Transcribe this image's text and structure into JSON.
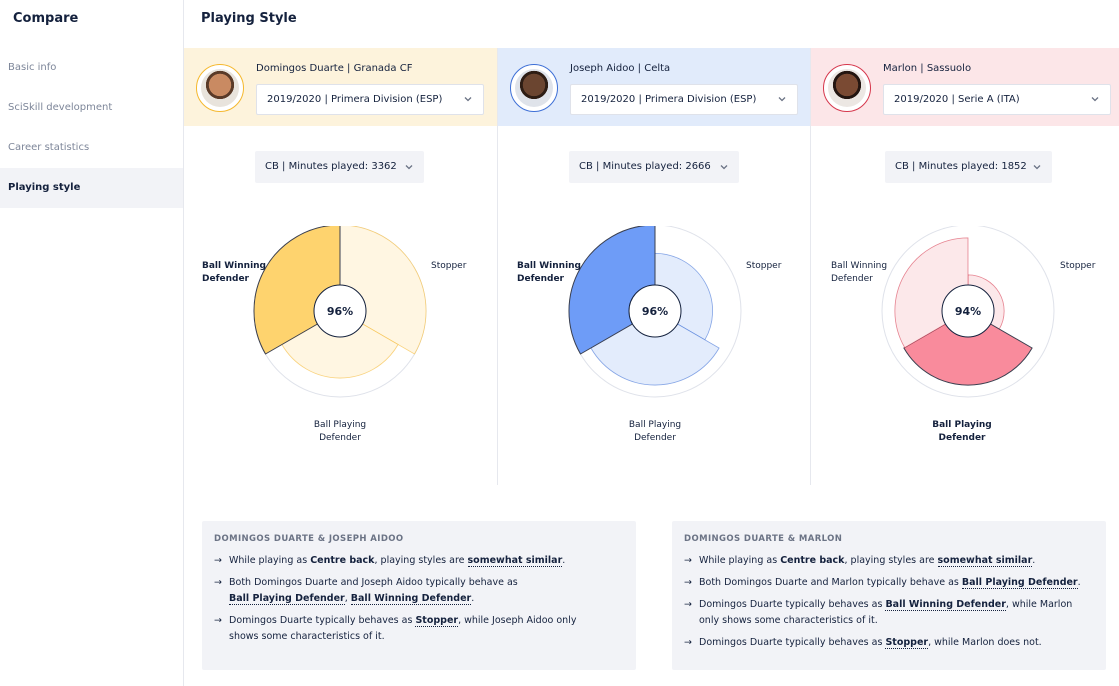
{
  "sidebar": {
    "title": "Compare",
    "items": [
      {
        "label": "Basic info"
      },
      {
        "label": "SciSkill development"
      },
      {
        "label": "Career statistics"
      },
      {
        "label": "Playing style"
      }
    ]
  },
  "main": {
    "title": "Playing Style"
  },
  "players": [
    {
      "name": "Domingos Duarte | Granada CF",
      "season": "2019/2020 | Primera Division (ESP)",
      "position": "CB | Minutes played: 3362",
      "score": "96%",
      "labels": {
        "left": "Ball Winning\nDefender",
        "right": "Stopper",
        "bottom": "Ball Playing\nDefender"
      },
      "colors": {
        "accent": "#f5b82e",
        "header_bg": "#fdf3dc",
        "strong": "#fed36e",
        "light": "#fff6e2"
      },
      "levels": {
        "ball_winning": 1.0,
        "stopper": 1.0,
        "ball_playing": 0.78
      }
    },
    {
      "name": "Joseph Aidoo | Celta",
      "season": "2019/2020 | Primera Division (ESP)",
      "position": "CB | Minutes played: 2666",
      "score": "96%",
      "labels": {
        "left": "Ball Winning\nDefender",
        "right": "Stopper",
        "bottom": "Ball Playing\nDefender"
      },
      "colors": {
        "accent": "#3d6fd6",
        "header_bg": "#e1ebfb",
        "strong": "#6e9cf7",
        "light": "#e3ecfc"
      },
      "levels": {
        "ball_winning": 1.0,
        "stopper": 0.67,
        "ball_playing": 0.86
      }
    },
    {
      "name": "Marlon | Sassuolo",
      "season": "2019/2020 | Serie A (ITA)",
      "position": "CB | Minutes played: 1852",
      "score": "94%",
      "labels": {
        "left": "Ball Winning\nDefender",
        "right": "Stopper",
        "bottom": "Ball Playing\nDefender"
      },
      "colors": {
        "accent": "#d6374c",
        "header_bg": "#fce6e8",
        "strong": "#f98b9c",
        "light": "#fce8ea"
      },
      "levels": {
        "ball_winning": 0.85,
        "stopper": 0.42,
        "ball_playing": 0.86
      }
    }
  ],
  "comparisons": [
    {
      "title": "DOMINGOS DUARTE & JOSEPH AIDOO",
      "lines": [
        {
          "parts": [
            {
              "t": "While playing as "
            },
            {
              "t": "Centre back",
              "s": "b"
            },
            {
              "t": ", playing styles are "
            },
            {
              "t": "somewhat similar",
              "s": "u"
            },
            {
              "t": "."
            }
          ]
        },
        {
          "parts": [
            {
              "t": "Both Domingos Duarte and Joseph Aidoo typically behave as"
            },
            {
              "t": "",
              "s": "br"
            },
            {
              "t": "Ball Playing Defender",
              "s": "u"
            },
            {
              "t": ", "
            },
            {
              "t": "Ball Winning Defender",
              "s": "u"
            },
            {
              "t": "."
            }
          ]
        },
        {
          "parts": [
            {
              "t": "Domingos Duarte typically behaves as "
            },
            {
              "t": "Stopper",
              "s": "u"
            },
            {
              "t": ", while Joseph Aidoo only"
            },
            {
              "t": "",
              "s": "br"
            },
            {
              "t": "shows some characteristics of it."
            }
          ]
        }
      ]
    },
    {
      "title": "DOMINGOS DUARTE & MARLON",
      "lines": [
        {
          "parts": [
            {
              "t": "While playing as "
            },
            {
              "t": "Centre back",
              "s": "b"
            },
            {
              "t": ", playing styles are "
            },
            {
              "t": "somewhat similar",
              "s": "u"
            },
            {
              "t": "."
            }
          ]
        },
        {
          "parts": [
            {
              "t": "Both Domingos Duarte and Marlon typically behave as "
            },
            {
              "t": "Ball Playing Defender",
              "s": "u"
            },
            {
              "t": "."
            }
          ]
        },
        {
          "parts": [
            {
              "t": "Domingos Duarte typically behaves as "
            },
            {
              "t": "Ball Winning Defender",
              "s": "u"
            },
            {
              "t": ", while Marlon"
            },
            {
              "t": "",
              "s": "br"
            },
            {
              "t": "only shows some characteristics of it."
            }
          ]
        },
        {
          "parts": [
            {
              "t": "Domingos Duarte typically behaves as "
            },
            {
              "t": "Stopper",
              "s": "u"
            },
            {
              "t": ", while Marlon does not."
            }
          ]
        }
      ]
    }
  ]
}
